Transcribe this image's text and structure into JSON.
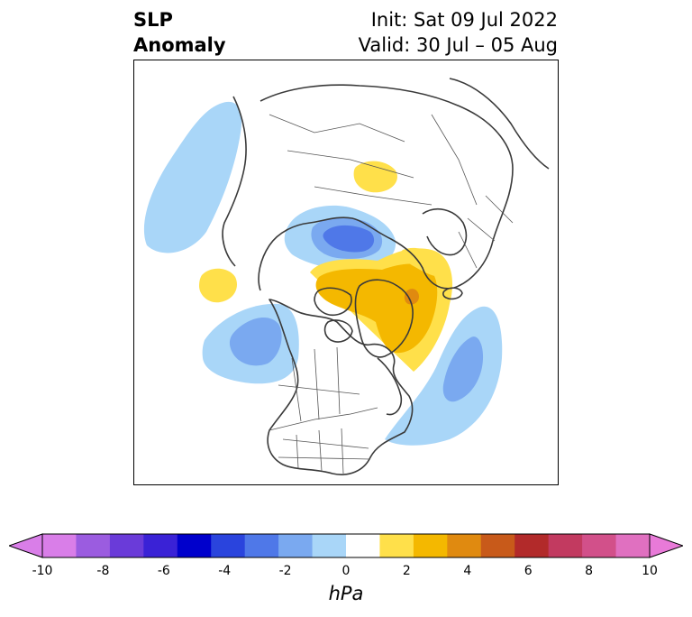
{
  "title": {
    "left_line1": "SLP",
    "left_line2": "Anomaly",
    "right_line1": "Init: Sat 09 Jul 2022",
    "right_line2": "Valid: 30 Jul – 05 Aug"
  },
  "colorbar": {
    "units": "hPa",
    "tick_labels": [
      "-10",
      "-8",
      "-6",
      "-4",
      "-2",
      "0",
      "2",
      "4",
      "6",
      "8",
      "10"
    ],
    "colors": [
      "#d97ee8",
      "#9b5ce0",
      "#6a3bd9",
      "#3a22d6",
      "#0000cc",
      "#2a44dd",
      "#4f78e8",
      "#7aa9f0",
      "#a9d6f8",
      "#ffffff",
      "#ffe04a",
      "#f4b800",
      "#e08a10",
      "#c85a1a",
      "#b22a2a",
      "#c23a60",
      "#d2508a",
      "#e070c0"
    ],
    "extend_low_color": "#d97ee8",
    "extend_high_color": "#e87ad8"
  },
  "map": {
    "projection": "north-polar-stereographic",
    "anomaly_colors": {
      "neg1": "#a9d6f8",
      "neg2": "#7aa9f0",
      "neg3": "#4f78e8",
      "pos1": "#ffe04a",
      "pos2": "#f4b800",
      "pos3": "#e08a10"
    }
  }
}
